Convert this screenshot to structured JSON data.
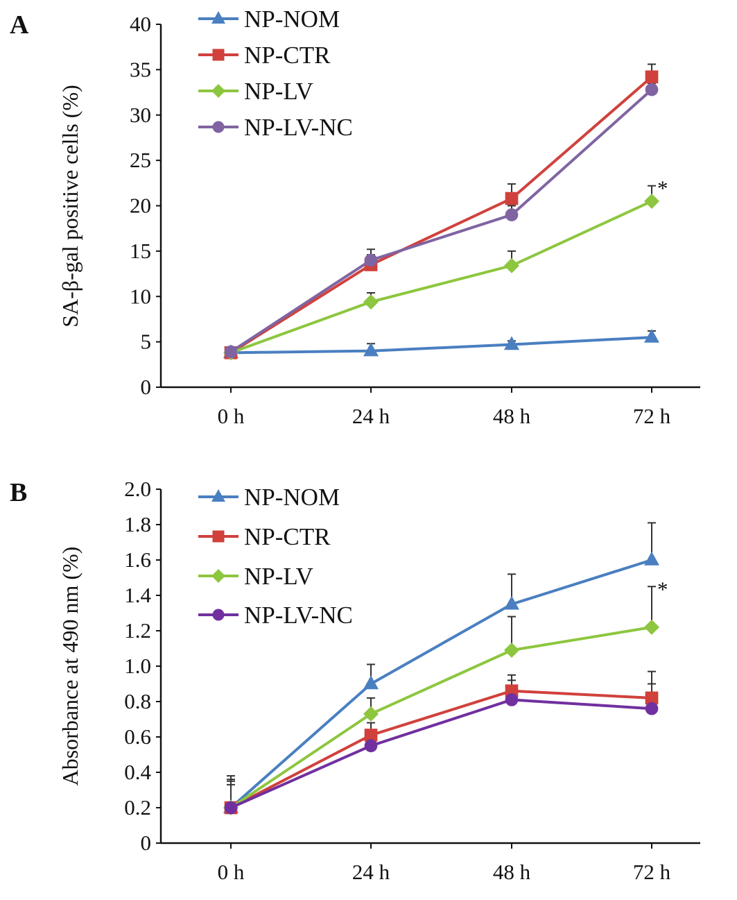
{
  "chart_data": [
    {
      "panel_label": "A",
      "type": "line",
      "ylabel": "SA-β-gal positive cells (%)",
      "xlabel": "",
      "categories": [
        "0 h",
        "24 h",
        "48 h",
        "72 h"
      ],
      "ylim": [
        0,
        40
      ],
      "yticks": [
        0,
        5,
        10,
        15,
        20,
        25,
        30,
        35,
        40
      ],
      "grid": false,
      "legend": "top-left",
      "annotations": [
        {
          "text": "*",
          "series": "NP-LV",
          "category": "72 h"
        }
      ],
      "series": [
        {
          "name": "NP-NOM",
          "marker": "triangle",
          "color": "#4a7fc1",
          "values": [
            3.8,
            4.0,
            4.7,
            5.5
          ],
          "error_upper": [
            3.9,
            4.8,
            5.1,
            6.2
          ]
        },
        {
          "name": "NP-CTR",
          "marker": "square",
          "color": "#d0413c",
          "values": [
            3.8,
            13.5,
            20.8,
            34.2
          ],
          "error_upper": [
            4.0,
            14.6,
            22.4,
            35.6
          ]
        },
        {
          "name": "NP-LV",
          "marker": "diamond",
          "color": "#8dc63f",
          "values": [
            3.8,
            9.4,
            13.4,
            20.5
          ],
          "error_upper": [
            4.0,
            10.4,
            15.0,
            22.2
          ]
        },
        {
          "name": "NP-LV-NC",
          "marker": "circle",
          "color": "#8064a2",
          "values": [
            3.9,
            14.0,
            19.0,
            32.8
          ],
          "error_upper": [
            4.0,
            15.2,
            20.0,
            33.5
          ]
        }
      ]
    },
    {
      "panel_label": "B",
      "type": "line",
      "ylabel": "Absorbance at 490 nm (%)",
      "xlabel": "",
      "categories": [
        "0 h",
        "24 h",
        "48 h",
        "72 h"
      ],
      "ylim": [
        0,
        2.0
      ],
      "yticks": [
        "0",
        "0.2",
        "0.4",
        "0.6",
        "0.8",
        "1.0",
        "1.2",
        "1.4",
        "1.6",
        "1.8",
        "2.0"
      ],
      "grid": false,
      "legend": "top-left",
      "annotations": [
        {
          "text": "*",
          "series": "NP-LV",
          "category": "72 h"
        }
      ],
      "series": [
        {
          "name": "NP-NOM",
          "marker": "triangle",
          "color": "#4a7fc1",
          "values": [
            0.2,
            0.9,
            1.35,
            1.6
          ],
          "error_upper": [
            0.38,
            1.01,
            1.52,
            1.81
          ]
        },
        {
          "name": "NP-CTR",
          "marker": "square",
          "color": "#d0413c",
          "values": [
            0.2,
            0.61,
            0.86,
            0.82
          ],
          "error_upper": [
            0.35,
            0.68,
            0.95,
            0.97
          ]
        },
        {
          "name": "NP-LV",
          "marker": "diamond",
          "color": "#8dc63f",
          "values": [
            0.2,
            0.73,
            1.09,
            1.22
          ],
          "error_upper": [
            0.36,
            0.82,
            1.28,
            1.45
          ]
        },
        {
          "name": "NP-LV-NC",
          "marker": "circle",
          "color": "#7030a0",
          "values": [
            0.2,
            0.55,
            0.81,
            0.76
          ],
          "error_upper": [
            0.33,
            0.6,
            0.92,
            0.9
          ]
        }
      ]
    }
  ]
}
